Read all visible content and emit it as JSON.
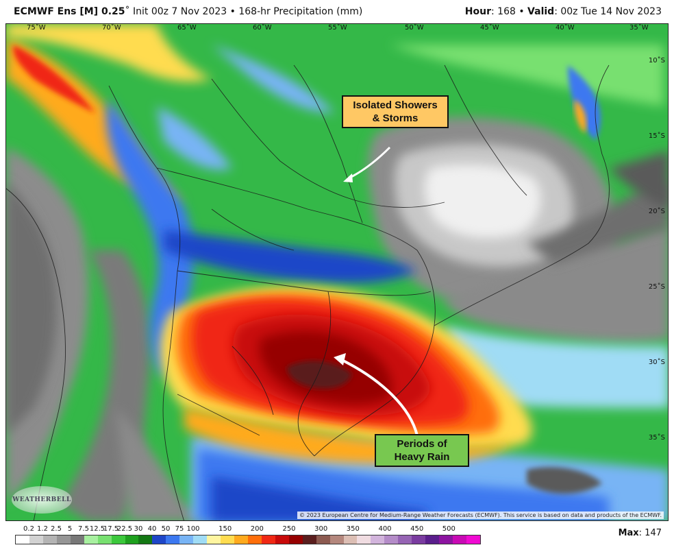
{
  "header": {
    "model_bold": "ECMWF Ens [M] 0.25",
    "model_rest": "˚ Init 00z 7 Nov 2023 • 168-hr Precipitation (mm)",
    "hour_key": "Hour",
    "hour_val": ": 168 • ",
    "valid_key": "Valid",
    "valid_val": ": 00z Tue 14 Nov 2023"
  },
  "longitudes": [
    "75˚W",
    "70˚W",
    "65˚W",
    "60˚W",
    "55˚W",
    "50˚W",
    "45˚W",
    "40˚W",
    "35˚W"
  ],
  "latitudes": [
    "10˚S",
    "15˚S",
    "20˚S",
    "25˚S",
    "30˚S",
    "35˚S"
  ],
  "callouts": {
    "showers_line1": "Isolated Showers",
    "showers_line2": "& Storms",
    "rain_line1": "Periods of",
    "rain_line2": "Heavy Rain"
  },
  "credit": "© 2023 European Centre for Medium-Range Weather Forecasts (ECMWF). This service is based on data and products of the ECMWF.",
  "logo_text": "WEATHERBELL",
  "legend": {
    "labels": [
      "0.2",
      "1.2",
      "2.5",
      "5",
      "7.5",
      "12.5",
      "17.5",
      "22.5",
      "30",
      "40",
      "50",
      "75",
      "100",
      "150",
      "200",
      "250",
      "300",
      "350",
      "400",
      "450",
      "500"
    ],
    "colors": [
      "#ffffff",
      "#d2d2d2",
      "#b4b4b4",
      "#969696",
      "#787878",
      "#a8f0a0",
      "#78e070",
      "#3cc83c",
      "#1ea01e",
      "#147814",
      "#1e46c8",
      "#3c78f0",
      "#78b4f5",
      "#a0dcf5",
      "#fff5a0",
      "#ffdc50",
      "#ffaa1e",
      "#ff6e0a",
      "#f02814",
      "#c80a0a",
      "#960000",
      "#5a1e1e",
      "#8c5a50",
      "#b4877d",
      "#dcbeb4",
      "#f0dce1",
      "#d2b4dc",
      "#b48cc8",
      "#9664b4",
      "#7a3ca0",
      "#5a1e8c",
      "#8c14a0",
      "#c80ab4",
      "#f00ad2"
    ]
  },
  "max": {
    "key": "Max",
    "val": ": 147"
  }
}
